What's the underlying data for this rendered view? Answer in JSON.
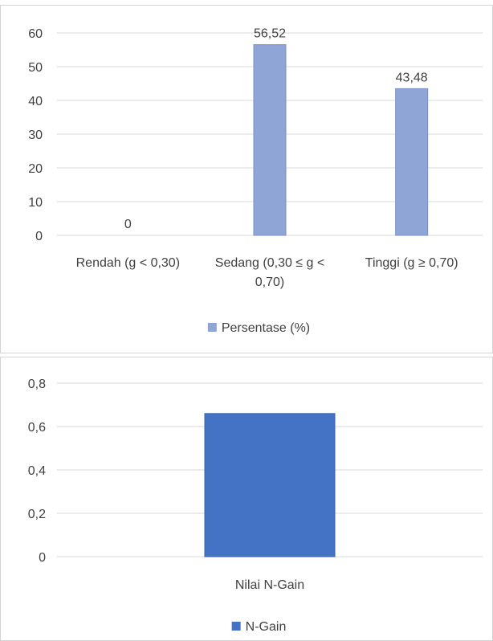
{
  "chart_data": [
    {
      "type": "bar",
      "categories": [
        "Rendah (g < 0,30)",
        "Sedang (0,30 ≤ g < 0,70)",
        "Tinggi (g ≥ 0,70)"
      ],
      "category_lines": [
        [
          "Rendah (g < 0,30)"
        ],
        [
          "Sedang (0,30 ≤ g <",
          "0,70)"
        ],
        [
          "Tinggi (g ≥ 0,70)"
        ]
      ],
      "series": [
        {
          "name": "Persentase (%)",
          "values": [
            0,
            56.52,
            43.48
          ],
          "color": "#8fa5d6"
        }
      ],
      "data_labels": [
        "0",
        "56,52",
        "43,48"
      ],
      "ylim": [
        0,
        60
      ],
      "yticks": [
        0,
        10,
        20,
        30,
        40,
        50,
        60
      ],
      "ytick_labels": [
        "0",
        "10",
        "20",
        "30",
        "40",
        "50",
        "60"
      ],
      "grid": true,
      "legend_position": "bottom"
    },
    {
      "type": "bar",
      "categories": [
        "Nilai N-Gain"
      ],
      "category_lines": [
        [
          "Nilai N-Gain"
        ]
      ],
      "series": [
        {
          "name": "N-Gain",
          "values": [
            0.66
          ],
          "color": "#4472c4"
        }
      ],
      "data_labels": [],
      "ylim": [
        0,
        0.8
      ],
      "yticks": [
        0,
        0.2,
        0.4,
        0.6,
        0.8
      ],
      "ytick_labels": [
        "0",
        "0,2",
        "0,4",
        "0,6",
        "0,8"
      ],
      "grid": true,
      "legend_position": "bottom"
    }
  ]
}
